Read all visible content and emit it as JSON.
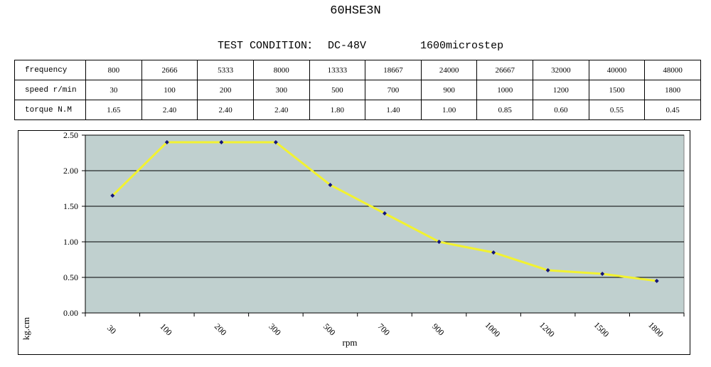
{
  "title": "60HSE3N",
  "condition": {
    "label": "TEST CONDITION：",
    "voltage": "DC-48V",
    "microstep": "1600microstep"
  },
  "table": {
    "rows": [
      {
        "label": "frequency",
        "values": [
          "800",
          "2666",
          "5333",
          "8000",
          "13333",
          "18667",
          "24000",
          "26667",
          "32000",
          "40000",
          "48000"
        ]
      },
      {
        "label": "speed r/min",
        "values": [
          "30",
          "100",
          "200",
          "300",
          "500",
          "700",
          "900",
          "1000",
          "1200",
          "1500",
          "1800"
        ]
      },
      {
        "label": "torque N.M",
        "values": [
          "1.65",
          "2.40",
          "2.40",
          "2.40",
          "1.80",
          "1.40",
          "1.00",
          "0.85",
          "0.60",
          "0.55",
          "0.45"
        ]
      }
    ]
  },
  "chart_data": {
    "type": "line",
    "categories": [
      "30",
      "100",
      "200",
      "300",
      "500",
      "700",
      "900",
      "1000",
      "1200",
      "1500",
      "1800"
    ],
    "series": [
      {
        "values": [
          1.65,
          2.4,
          2.4,
          2.4,
          1.8,
          1.4,
          1.0,
          0.85,
          0.6,
          0.55,
          0.45
        ]
      }
    ],
    "yticks": [
      "0.00",
      "0.50",
      "1.00",
      "1.50",
      "2.00",
      "2.50"
    ],
    "ylim": [
      0,
      2.5
    ],
    "xlabel": "rpm",
    "ylabel": "kg.cm",
    "grid": "horizontal",
    "colors": {
      "plot_bg": "#c0d0cf",
      "line": "#f2f230",
      "marker": "#13137a",
      "grid": "#000000"
    }
  }
}
